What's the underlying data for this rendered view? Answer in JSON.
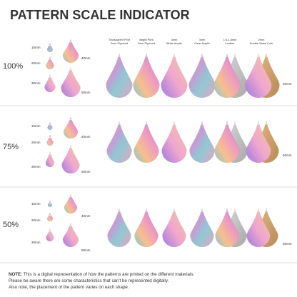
{
  "header": {
    "title": "PATTERN SCALE INDICATOR"
  },
  "columns": [
    {
      "line1": "Transparent Print",
      "line2": "3mm Plywood"
    },
    {
      "line1": "Bright Print",
      "line2": "3mm Plywood"
    },
    {
      "line1": "3mm",
      "line2": "White Acrylic"
    },
    {
      "line1": "3mm",
      "line2": "Clear Acrylic"
    },
    {
      "line1": "1.6-1.8mm",
      "line2": "Leather"
    },
    {
      "line1": "2mm",
      "line2": "Double Sided Cork"
    }
  ],
  "sections": [
    {
      "scale": "100%",
      "sizes": [
        "15mm",
        "20mm",
        "30mm",
        "40mm",
        "50mm"
      ],
      "big_size": "60mm"
    },
    {
      "scale": "75%",
      "sizes": [
        "15mm",
        "20mm",
        "30mm",
        "40mm",
        "50mm"
      ],
      "big_size": "60mm"
    },
    {
      "scale": "50%",
      "sizes": [
        "15mm",
        "20mm",
        "30mm",
        "40mm",
        "50mm"
      ],
      "big_size": "60mm"
    }
  ],
  "note": {
    "label": "NOTE:",
    "lines": [
      "This is a digital representation of how the patterns are printed on the different materials.",
      "Please be aware there are some characteristics that can't be represented digitally.",
      "Also note, the placement of the pattern varies on each shape."
    ]
  }
}
